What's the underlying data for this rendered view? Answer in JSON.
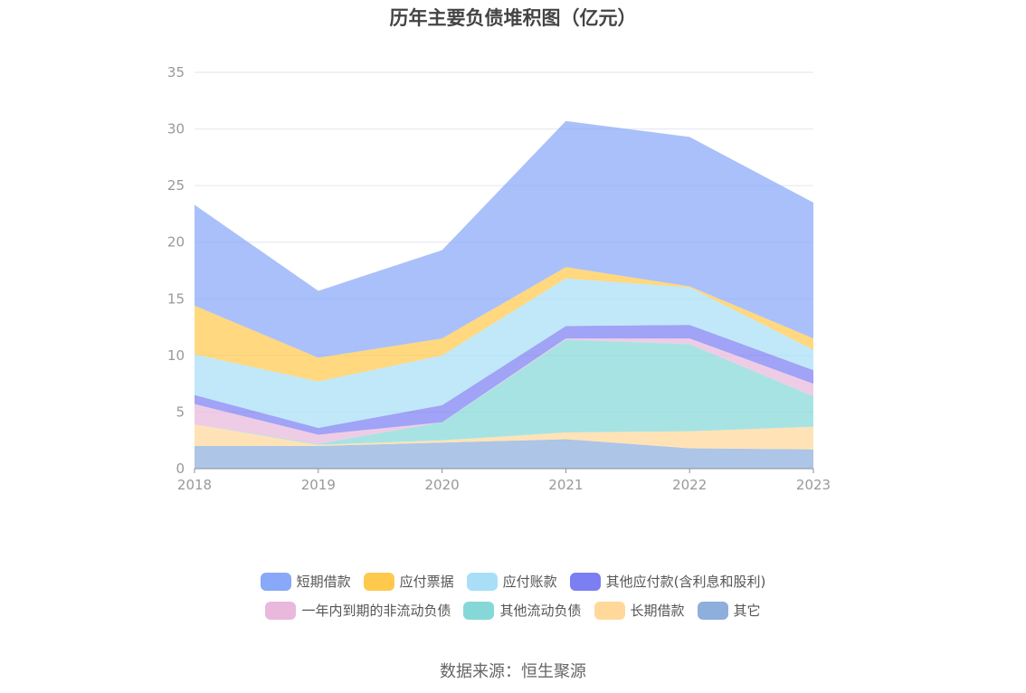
{
  "title": "历年主要负债堆积图（亿元）",
  "source": "数据来源：恒生聚源",
  "chart_data": {
    "type": "area",
    "stacked": true,
    "categories": [
      "2018",
      "2019",
      "2020",
      "2021",
      "2022",
      "2023"
    ],
    "ylim": [
      0,
      35
    ],
    "yticks": [
      0,
      5,
      10,
      15,
      20,
      25,
      30,
      35
    ],
    "grid": true,
    "legend_position": "bottom",
    "series": [
      {
        "name": "其它",
        "color": "#8eaedc",
        "values": [
          2.0,
          2.0,
          2.3,
          2.6,
          1.8,
          1.7
        ]
      },
      {
        "name": "长期借款",
        "color": "#ffd89a",
        "values": [
          1.9,
          0.1,
          0.2,
          0.6,
          1.5,
          2.0
        ]
      },
      {
        "name": "其他流动负债",
        "color": "#86d8d8",
        "values": [
          0.0,
          0.1,
          1.6,
          8.2,
          7.7,
          2.7
        ]
      },
      {
        "name": "一年内到期的非流动负债",
        "color": "#e9b8dc",
        "values": [
          1.8,
          0.8,
          0.0,
          0.1,
          0.5,
          1.1
        ]
      },
      {
        "name": "其他应付款(含利息和股利)",
        "color": "#7b7ff2",
        "values": [
          0.8,
          0.6,
          1.5,
          1.1,
          1.2,
          1.2
        ]
      },
      {
        "name": "应付账款",
        "color": "#a8dff7",
        "values": [
          3.6,
          4.1,
          4.4,
          4.2,
          3.3,
          1.8
        ]
      },
      {
        "name": "应付票据",
        "color": "#ffc94d",
        "values": [
          4.3,
          2.1,
          1.5,
          1.0,
          0.1,
          1.0
        ]
      },
      {
        "name": "短期借款",
        "color": "#88a8f8",
        "values": [
          8.9,
          5.9,
          7.8,
          12.9,
          13.2,
          12.0
        ]
      }
    ],
    "legend_order": [
      "短期借款",
      "应付票据",
      "应付账款",
      "其他应付款(含利息和股利)",
      "一年内到期的非流动负债",
      "其他流动负债",
      "长期借款",
      "其它"
    ]
  }
}
